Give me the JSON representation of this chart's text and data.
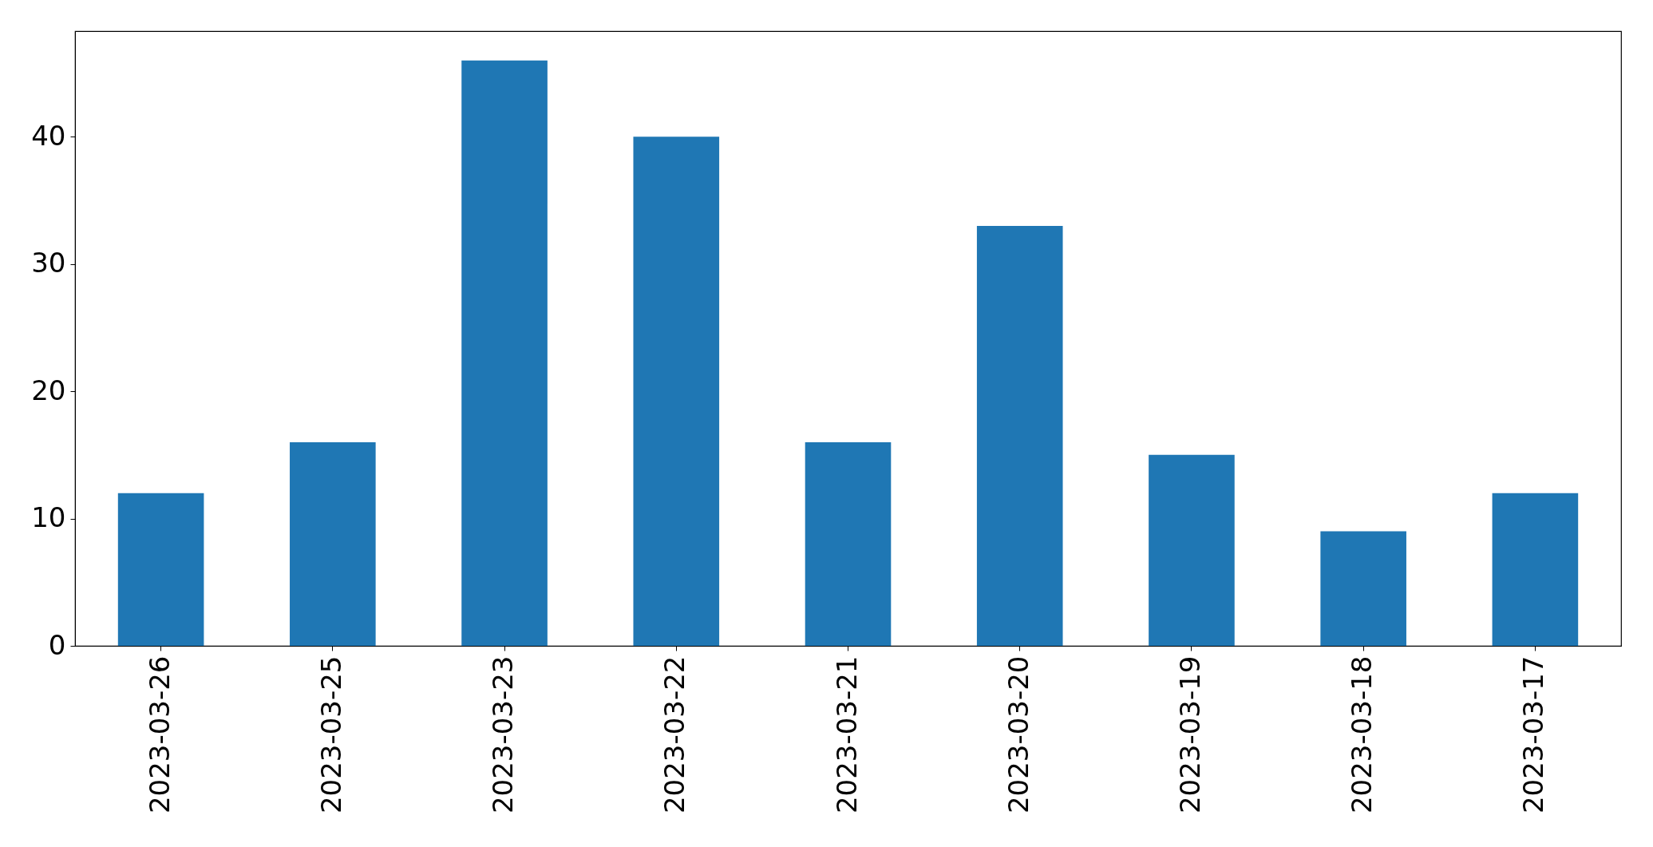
{
  "chart_data": {
    "type": "bar",
    "categories": [
      "2023-03-26",
      "2023-03-25",
      "2023-03-23",
      "2023-03-22",
      "2023-03-21",
      "2023-03-20",
      "2023-03-19",
      "2023-03-18",
      "2023-03-17"
    ],
    "values": [
      12,
      16,
      46,
      40,
      16,
      33,
      15,
      9,
      12
    ],
    "color": "#1f77b4",
    "ylim": [
      0,
      48.3
    ],
    "yticks": [
      0,
      10,
      20,
      30,
      40
    ]
  }
}
